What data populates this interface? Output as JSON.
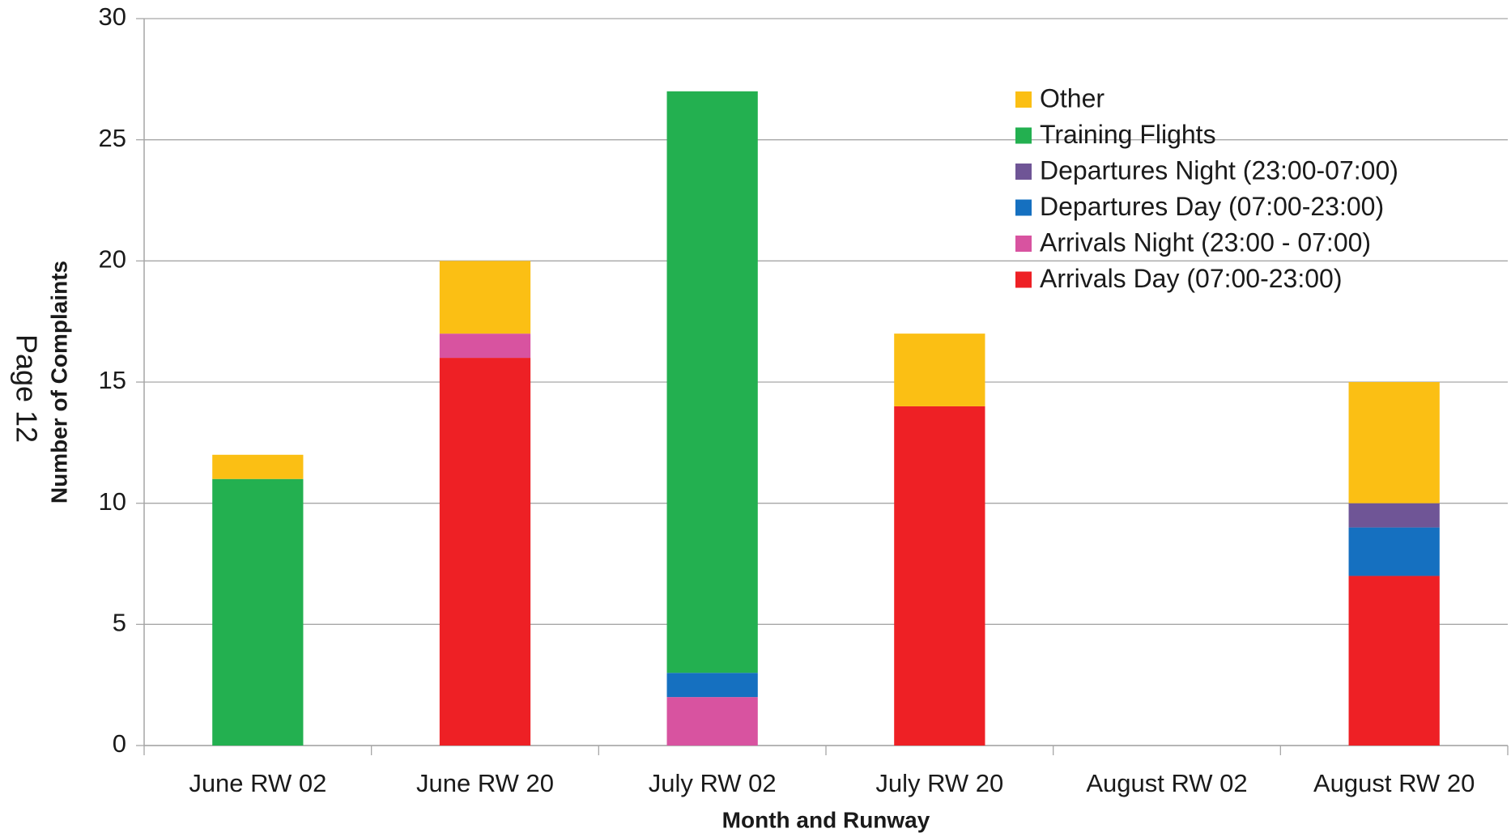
{
  "page_label": "Page 12",
  "chart_data": {
    "type": "stacked_bar",
    "x_label": "Month and Runway",
    "y_label": "Number of Complaints",
    "categories": [
      "June RW 02",
      "June RW 20",
      "July RW 02",
      "July RW 20",
      "August RW 02",
      "August RW 20"
    ],
    "series": [
      {
        "name": "Arrivals Day (07:00-23:00)",
        "color": "#ee2025",
        "values": [
          0,
          16,
          0,
          14,
          0,
          7
        ]
      },
      {
        "name": "Arrivals Night (23:00 - 07:00)",
        "color": "#d853a0",
        "values": [
          0,
          1,
          2,
          0,
          0,
          0
        ]
      },
      {
        "name": "Departures Day  (07:00-23:00)",
        "color": "#1570c0",
        "values": [
          0,
          0,
          1,
          0,
          0,
          2
        ]
      },
      {
        "name": "Departures Night (23:00-07:00)",
        "color": "#6f5596",
        "values": [
          0,
          0,
          0,
          0,
          0,
          1
        ]
      },
      {
        "name": "Training Flights",
        "color": "#23b050",
        "values": [
          11,
          0,
          24,
          0,
          0,
          0
        ]
      },
      {
        "name": "Other",
        "color": "#fbbf14",
        "values": [
          1,
          3,
          0,
          3,
          0,
          5
        ]
      }
    ],
    "ylim": [
      0,
      30
    ],
    "yticks": [
      0,
      5,
      10,
      15,
      20,
      25,
      30
    ],
    "grid": true,
    "legend": "upper right"
  }
}
